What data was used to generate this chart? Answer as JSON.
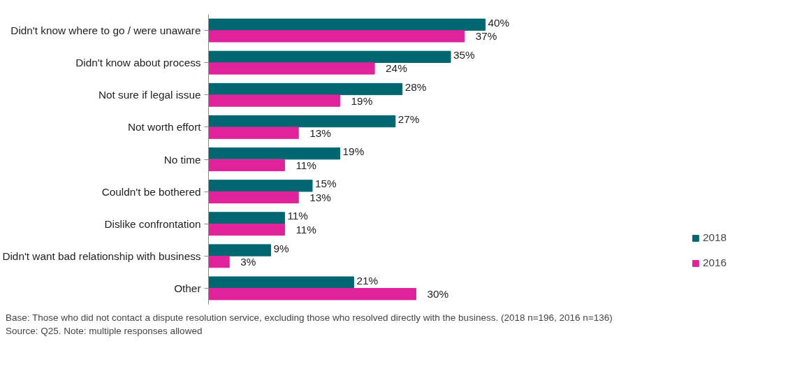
{
  "chart_data": {
    "type": "bar",
    "orientation": "horizontal",
    "categories": [
      "Didn't know where to go / were unaware",
      "Didn't know about process",
      "Not sure if legal issue",
      "Not worth effort",
      "No time",
      "Couldn't be bothered",
      "Dislike confrontation",
      "Didn't want bad relationship with business",
      "Other"
    ],
    "series": [
      {
        "name": "2018",
        "color": "#006670",
        "values": [
          40,
          35,
          28,
          27,
          19,
          15,
          11,
          9,
          21
        ],
        "value_labels": [
          "40%",
          "35%",
          "28%",
          "27%",
          "19%",
          "15%",
          "11%",
          "9%",
          "21%"
        ]
      },
      {
        "name": "2016",
        "color": "#e0229b",
        "values": [
          37,
          24,
          19,
          13,
          11,
          13,
          11,
          3,
          30
        ],
        "value_labels": [
          "37%",
          "24%",
          "19%",
          "13%",
          "11%",
          "13%",
          "11%",
          "3%",
          "30%"
        ]
      }
    ],
    "legend": "right",
    "tick_labels": "y",
    "annotations": [
      "Base: Those who did not contact a dispute resolution service, excluding those who resolved directly with the business. (2018 n=196, 2016 n=136)",
      "Source: Q25. Note: multiple responses allowed"
    ]
  }
}
